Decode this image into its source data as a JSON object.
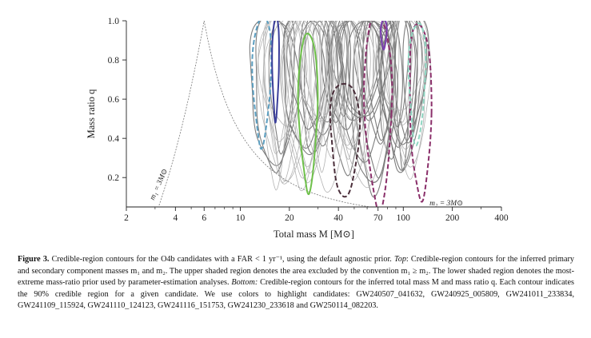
{
  "figure": {
    "y_label": "Mass ratio q",
    "x_label": "Total mass M [M⊙]",
    "annotations": [
      {
        "text": "m₁ = 3M⊙",
        "kind": "lower-left-boundary"
      },
      {
        "text": "m₂ = 3M⊙",
        "kind": "lower-right-boundary"
      }
    ]
  },
  "chart_data": {
    "type": "contour",
    "xlabel": "Total mass M [M⊙]",
    "ylabel": "Mass ratio q",
    "xscale": "log",
    "xlim": [
      2,
      400
    ],
    "ylim": [
      0.05,
      1.0
    ],
    "x_ticks": [
      "2",
      "4",
      "6",
      "10",
      "20",
      "40",
      "70",
      "100",
      "200",
      "400"
    ],
    "y_ticks": [
      "0.2",
      "0.4",
      "0.6",
      "0.8",
      "1.0"
    ],
    "grid": false,
    "background_contour_color": "#8c8c8c",
    "highlight_contours": [
      {
        "color": "#5b9ec0",
        "style": "dashed",
        "m_min": 11.5,
        "m_max": 16,
        "q_min": 0.37,
        "q_max": 1.0
      },
      {
        "color": "#3b3f9a",
        "style": "solid",
        "m_min": 15.5,
        "m_max": 17.5,
        "q_min": 0.5,
        "q_max": 1.0
      },
      {
        "color": "#6ec04a",
        "style": "solid",
        "m_min": 22,
        "m_max": 31,
        "q_min": 0.15,
        "q_max": 0.9
      },
      {
        "color": "#4a2e3a",
        "style": "dashed",
        "m_min": 34,
        "m_max": 56,
        "q_min": 0.07,
        "q_max": 0.71
      },
      {
        "color": "#8a2f6a",
        "style": "dashed",
        "m_min": 55,
        "m_max": 90,
        "q_min": 0.05,
        "q_max": 1.0
      },
      {
        "color": "#8a2f6a",
        "style": "dashed",
        "m_min": 105,
        "m_max": 155,
        "q_min": 0.07,
        "q_max": 0.99
      },
      {
        "color": "#7b3fb0",
        "style": "solid",
        "m_min": 72,
        "m_max": 80,
        "q_min": 0.86,
        "q_max": 1.0
      },
      {
        "color": "#8fd6c2",
        "style": "dashed",
        "m_min": 105,
        "m_max": 140,
        "q_min": 0.35,
        "q_max": 1.0
      }
    ],
    "boundary_peak": {
      "M": 6,
      "q": 1.0
    }
  },
  "caption": {
    "label": "Figure 3.",
    "lines": [
      "Credible-region contours for the O4b candidates with a FAR < 1 yr⁻¹, using the default agnostic prior. Top: Credible-region contours for the inferred primary and secondary component masses m₁ and m₂. The upper shaded region denotes the area excluded by the convention m₁ ≥ m₂. The lower shaded region denotes the most-extreme mass-ratio prior used by parameter-estimation analyses. Bottom: Credible-region contours for the inferred total mass M and mass ratio q. Each contour indicates the 90% credible region for a given candidate. We use colors to highlight candidates: GW240507_041632, GW240925_005809, GW241011_233834, GW241109_115924, GW241110_124123, GW241116_151753, GW241230_233618 and GW250114_082203."
    ],
    "intro": "Credible-region contours for the O4b candidates with a FAR < 1 yr⁻¹, using the default agnostic prior.",
    "top_label": "Top",
    "top_text": ": Credible-region contours for the inferred primary and secondary component masses m₁ and m₂. The upper shaded region denotes the area excluded by the convention m₁ ≥ m₂. The lower shaded region denotes the most-extreme mass-ratio prior used by parameter-estimation analyses.",
    "bottom_label": "Bottom:",
    "bottom_text": " Credible-region contours for the inferred total mass M and mass ratio q. Each contour indicates the 90% credible region for a given candidate. We use colors to highlight candidates: GW240507_041632, GW240925_005809, GW241011_233834, GW241109_115924, GW241110_124123, GW241116_151753, GW241230_233618 and GW250114_082203."
  }
}
